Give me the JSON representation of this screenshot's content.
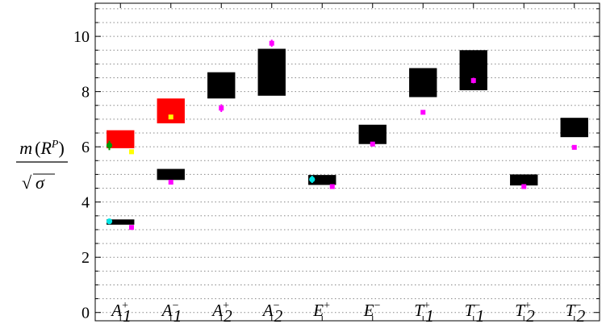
{
  "chart_data": {
    "type": "scatter",
    "title": "",
    "ylabel": "m(R^P)/√σ",
    "ylim": [
      -0.3,
      11.2
    ],
    "yticks": [
      0,
      2,
      4,
      6,
      8,
      10
    ],
    "grid": true,
    "grid_step": 0.5,
    "categories": [
      {
        "base": "A",
        "sub": "1",
        "sup": "+"
      },
      {
        "base": "A",
        "sub": "1",
        "sup": "−"
      },
      {
        "base": "A",
        "sub": "2",
        "sup": "+"
      },
      {
        "base": "A",
        "sub": "2",
        "sup": "−"
      },
      {
        "base": "E",
        "sub": "",
        "sup": "+"
      },
      {
        "base": "E",
        "sub": "",
        "sup": "−"
      },
      {
        "base": "T",
        "sub": "1",
        "sup": "+"
      },
      {
        "base": "T",
        "sub": "1",
        "sup": "−"
      },
      {
        "base": "T",
        "sub": "2",
        "sup": "+"
      },
      {
        "base": "T",
        "sub": "2",
        "sup": "−"
      }
    ],
    "boxes": [
      {
        "category": 0,
        "low": 3.18,
        "high": 3.37,
        "color": "#000000"
      },
      {
        "category": 0,
        "low": 5.95,
        "high": 6.6,
        "color": "#ff0000"
      },
      {
        "category": 1,
        "low": 4.8,
        "high": 5.2,
        "color": "#000000"
      },
      {
        "category": 1,
        "low": 6.85,
        "high": 7.75,
        "color": "#ff0000"
      },
      {
        "category": 2,
        "low": 7.75,
        "high": 8.7,
        "color": "#000000"
      },
      {
        "category": 3,
        "low": 7.85,
        "high": 9.55,
        "color": "#000000"
      },
      {
        "category": 4,
        "low": 4.62,
        "high": 4.98,
        "color": "#000000"
      },
      {
        "category": 5,
        "low": 6.1,
        "high": 6.8,
        "color": "#000000"
      },
      {
        "category": 6,
        "low": 7.8,
        "high": 8.85,
        "color": "#000000"
      },
      {
        "category": 7,
        "low": 8.05,
        "high": 9.5,
        "color": "#000000"
      },
      {
        "category": 8,
        "low": 4.6,
        "high": 5.0,
        "color": "#000000"
      },
      {
        "category": 9,
        "low": 6.35,
        "high": 7.05,
        "color": "#000000"
      }
    ],
    "points": [
      {
        "category": 0,
        "offset": -0.22,
        "y": 3.3,
        "err": 0.06,
        "color": "#00e5e5",
        "shape": "circle"
      },
      {
        "category": 0,
        "offset": 0.22,
        "y": 3.08,
        "err": 0.04,
        "color": "#ff00ff",
        "shape": "square"
      },
      {
        "category": 0,
        "offset": -0.22,
        "y": 6.05,
        "err": 0.17,
        "color": "#009900",
        "shape": "circle"
      },
      {
        "category": 0,
        "offset": 0.22,
        "y": 5.82,
        "err": 0.04,
        "color": "#ffff00",
        "shape": "square"
      },
      {
        "category": 1,
        "offset": 0.0,
        "y": 7.08,
        "err": 0.05,
        "color": "#ffff00",
        "shape": "square"
      },
      {
        "category": 1,
        "offset": 0.0,
        "y": 4.72,
        "err": 0.04,
        "color": "#ff00ff",
        "shape": "square"
      },
      {
        "category": 2,
        "offset": 0.0,
        "y": 7.4,
        "err": 0.14,
        "color": "#ff00ff",
        "shape": "square"
      },
      {
        "category": 3,
        "offset": 0.0,
        "y": 9.75,
        "err": 0.13,
        "color": "#ff00ff",
        "shape": "square"
      },
      {
        "category": 4,
        "offset": -0.2,
        "y": 4.82,
        "err": 0.13,
        "color": "#00e5e5",
        "shape": "circle"
      },
      {
        "category": 4,
        "offset": 0.2,
        "y": 4.56,
        "err": 0.04,
        "color": "#ff00ff",
        "shape": "square"
      },
      {
        "category": 5,
        "offset": 0.0,
        "y": 6.1,
        "err": 0.05,
        "color": "#ff00ff",
        "shape": "square"
      },
      {
        "category": 6,
        "offset": 0.0,
        "y": 7.25,
        "err": 0.05,
        "color": "#ff00ff",
        "shape": "square"
      },
      {
        "category": 7,
        "offset": 0.0,
        "y": 8.4,
        "err": 0.1,
        "color": "#ff00ff",
        "shape": "square"
      },
      {
        "category": 8,
        "offset": 0.0,
        "y": 4.56,
        "err": 0.04,
        "color": "#ff00ff",
        "shape": "square"
      },
      {
        "category": 9,
        "offset": 0.0,
        "y": 5.98,
        "err": 0.04,
        "color": "#ff00ff",
        "shape": "square"
      }
    ]
  }
}
